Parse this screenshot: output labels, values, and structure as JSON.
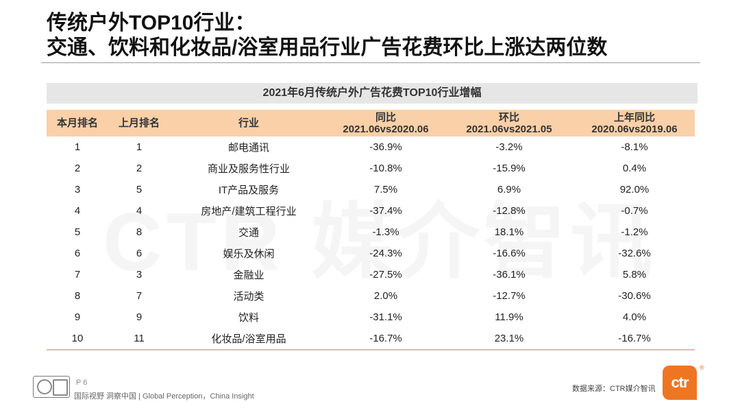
{
  "title": {
    "line1": "传统户外TOP10行业：",
    "line2": "交通、饮料和化妆品/浴室用品行业广告花费环比上涨达两位数"
  },
  "watermark": "CTR 媒介智讯",
  "table": {
    "caption": "2021年6月传统户外广告花费TOP10行业增幅",
    "headers": {
      "rank_current": "本月排名",
      "rank_previous": "上月排名",
      "industry": "行业",
      "yoy": "同比",
      "yoy_period": "2021.06vs2020.06",
      "mom": "环比",
      "mom_period": "2021.06vs2021.05",
      "prev_yoy": "上年同比",
      "prev_yoy_period": "2020.06vs2019.06"
    },
    "rows": [
      {
        "rank": "1",
        "prev_rank": "1",
        "industry": "邮电通讯",
        "yoy": "-36.9%",
        "mom": "-3.2%",
        "prev_yoy": "-8.1%"
      },
      {
        "rank": "2",
        "prev_rank": "2",
        "industry": "商业及服务性行业",
        "yoy": "-10.8%",
        "mom": "-15.9%",
        "prev_yoy": "0.4%"
      },
      {
        "rank": "3",
        "prev_rank": "5",
        "industry": "IT产品及服务",
        "yoy": "7.5%",
        "mom": "6.9%",
        "prev_yoy": "92.0%"
      },
      {
        "rank": "4",
        "prev_rank": "4",
        "industry": "房地产/建筑工程行业",
        "yoy": "-37.4%",
        "mom": "-12.8%",
        "prev_yoy": "-0.7%"
      },
      {
        "rank": "5",
        "prev_rank": "8",
        "industry": "交通",
        "yoy": "-1.3%",
        "mom": "18.1%",
        "prev_yoy": "-1.2%"
      },
      {
        "rank": "6",
        "prev_rank": "6",
        "industry": "娱乐及休闲",
        "yoy": "-24.3%",
        "mom": "-16.6%",
        "prev_yoy": "-32.6%"
      },
      {
        "rank": "7",
        "prev_rank": "3",
        "industry": "金融业",
        "yoy": "-27.5%",
        "mom": "-36.1%",
        "prev_yoy": "5.8%"
      },
      {
        "rank": "8",
        "prev_rank": "7",
        "industry": "活动类",
        "yoy": "2.0%",
        "mom": "-12.7%",
        "prev_yoy": "-30.6%"
      },
      {
        "rank": "9",
        "prev_rank": "9",
        "industry": "饮料",
        "yoy": "-31.1%",
        "mom": "11.9%",
        "prev_yoy": "4.0%"
      },
      {
        "rank": "10",
        "prev_rank": "11",
        "industry": "化妆品/浴室用品",
        "yoy": "-16.7%",
        "mom": "23.1%",
        "prev_yoy": "-16.7%"
      }
    ]
  },
  "footer": {
    "page": "P 6",
    "slogan": "国际视野  洞察中国 | Global Perception，China Insight",
    "source": "数据来源：CTR媒介智讯",
    "brand": "ctr",
    "registered": "®"
  },
  "colors": {
    "header_bg": "#f9d0a8",
    "caption_bg": "#e6e6e6",
    "brand_orange": "#ee7623"
  }
}
